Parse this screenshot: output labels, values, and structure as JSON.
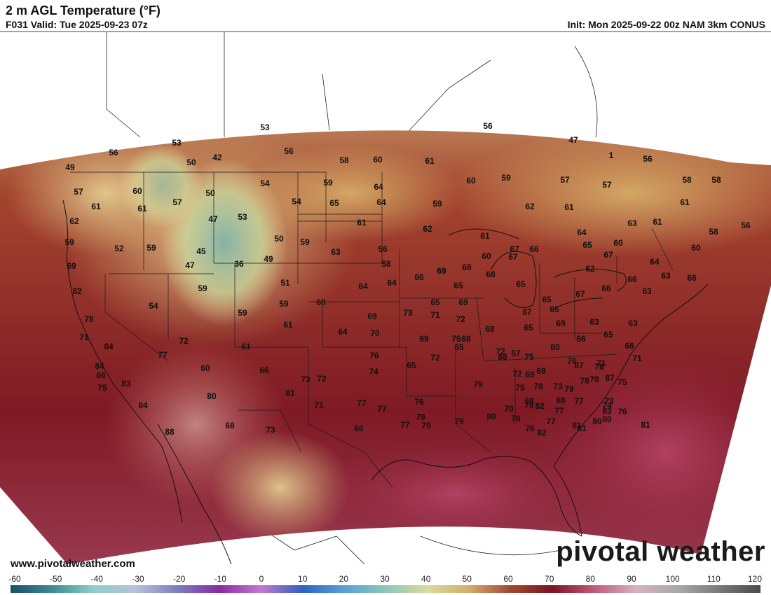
{
  "header": {
    "title": "2 m AGL Temperature (°F)",
    "valid": "F031 Valid: Tue 2025-09-23 07z",
    "init": "Init: Mon 2025-09-22 00z NAM 3km CONUS"
  },
  "footer": {
    "website": "www.pivotalweather.com",
    "brand": "pivotal weather"
  },
  "colorbar": {
    "ticks": [
      "-60",
      "-50",
      "-40",
      "-30",
      "-20",
      "-10",
      "0",
      "10",
      "20",
      "30",
      "40",
      "50",
      "60",
      "70",
      "80",
      "90",
      "100",
      "110",
      "120"
    ],
    "stops": [
      "#1d4f6a",
      "#3f8a92",
      "#8fcfc9",
      "#b8c2d8",
      "#7a7fc0",
      "#8a2aa4",
      "#c27ad0",
      "#2f62c0",
      "#5aa0d4",
      "#8bc7b8",
      "#d8dd9e",
      "#d4ac70",
      "#a0492f",
      "#7a1522",
      "#c05a7a",
      "#d8b0c0",
      "#a9a9a9",
      "#7a7a7a",
      "#4a4a4a"
    ]
  },
  "map_labels": [
    {
      "text": "53"
    },
    {
      "text": "56"
    },
    {
      "text": "47"
    },
    {
      "text": "56"
    },
    {
      "text": "53"
    },
    {
      "text": "56"
    },
    {
      "text": "50"
    },
    {
      "text": "42"
    },
    {
      "text": "58"
    },
    {
      "text": "60"
    },
    {
      "text": "61"
    },
    {
      "text": "1"
    },
    {
      "text": "56"
    },
    {
      "text": "49"
    },
    {
      "text": "57"
    },
    {
      "text": "60"
    },
    {
      "text": "57"
    },
    {
      "text": "50"
    },
    {
      "text": "54"
    },
    {
      "text": "59"
    },
    {
      "text": "64"
    },
    {
      "text": "60"
    },
    {
      "text": "59"
    },
    {
      "text": "57"
    },
    {
      "text": "57"
    },
    {
      "text": "58"
    },
    {
      "text": "58"
    },
    {
      "text": "61"
    },
    {
      "text": "61"
    },
    {
      "text": "54"
    },
    {
      "text": "65"
    },
    {
      "text": "64"
    },
    {
      "text": "59"
    },
    {
      "text": "62"
    },
    {
      "text": "61"
    },
    {
      "text": "62"
    },
    {
      "text": "47"
    },
    {
      "text": "53"
    },
    {
      "text": "61"
    },
    {
      "text": "61"
    },
    {
      "text": "63"
    },
    {
      "text": "58"
    },
    {
      "text": "56"
    },
    {
      "text": "59"
    },
    {
      "text": "52"
    },
    {
      "text": "59"
    },
    {
      "text": "45"
    },
    {
      "text": "50"
    },
    {
      "text": "59"
    },
    {
      "text": "62"
    },
    {
      "text": "61"
    },
    {
      "text": "61"
    },
    {
      "text": "64"
    },
    {
      "text": "60"
    },
    {
      "text": "69"
    },
    {
      "text": "47"
    },
    {
      "text": "36"
    },
    {
      "text": "49"
    },
    {
      "text": "63"
    },
    {
      "text": "56"
    },
    {
      "text": "66"
    },
    {
      "text": "67"
    },
    {
      "text": "65"
    },
    {
      "text": "67"
    },
    {
      "text": "64"
    },
    {
      "text": "60"
    },
    {
      "text": "58"
    },
    {
      "text": "68"
    },
    {
      "text": "60"
    },
    {
      "text": "67"
    },
    {
      "text": "62"
    },
    {
      "text": "63"
    },
    {
      "text": "82"
    },
    {
      "text": "59"
    },
    {
      "text": "51"
    },
    {
      "text": "64"
    },
    {
      "text": "64"
    },
    {
      "text": "66"
    },
    {
      "text": "69"
    },
    {
      "text": "65"
    },
    {
      "text": "68"
    },
    {
      "text": "65"
    },
    {
      "text": "67"
    },
    {
      "text": "66"
    },
    {
      "text": "66"
    },
    {
      "text": "63"
    },
    {
      "text": "54"
    },
    {
      "text": "60"
    },
    {
      "text": "59"
    },
    {
      "text": "65"
    },
    {
      "text": "69"
    },
    {
      "text": "65"
    },
    {
      "text": "66"
    },
    {
      "text": "78"
    },
    {
      "text": "59"
    },
    {
      "text": "61"
    },
    {
      "text": "69"
    },
    {
      "text": "73"
    },
    {
      "text": "71"
    },
    {
      "text": "72"
    },
    {
      "text": "67"
    },
    {
      "text": "69"
    },
    {
      "text": "63"
    },
    {
      "text": "63"
    },
    {
      "text": "71"
    },
    {
      "text": "64"
    },
    {
      "text": "70"
    },
    {
      "text": "68"
    },
    {
      "text": "65"
    },
    {
      "text": "65"
    },
    {
      "text": "84"
    },
    {
      "text": "72"
    },
    {
      "text": "61"
    },
    {
      "text": "69"
    },
    {
      "text": "68"
    },
    {
      "text": "66"
    },
    {
      "text": "65"
    },
    {
      "text": "66"
    },
    {
      "text": "84"
    },
    {
      "text": "77"
    },
    {
      "text": "60"
    },
    {
      "text": "66"
    },
    {
      "text": "73"
    },
    {
      "text": "72"
    },
    {
      "text": "65"
    },
    {
      "text": "72"
    },
    {
      "text": "65"
    },
    {
      "text": "57"
    },
    {
      "text": "72"
    },
    {
      "text": "78"
    },
    {
      "text": "71"
    },
    {
      "text": "76"
    },
    {
      "text": "80"
    },
    {
      "text": "88"
    },
    {
      "text": "87"
    },
    {
      "text": "66"
    },
    {
      "text": "75"
    },
    {
      "text": "74"
    },
    {
      "text": "76"
    },
    {
      "text": "75"
    },
    {
      "text": "72"
    },
    {
      "text": "69"
    },
    {
      "text": "69"
    },
    {
      "text": "87"
    },
    {
      "text": "75"
    },
    {
      "text": "79"
    },
    {
      "text": "78"
    },
    {
      "text": "73"
    },
    {
      "text": "78"
    },
    {
      "text": "78"
    },
    {
      "text": "75"
    },
    {
      "text": "71"
    },
    {
      "text": "83"
    },
    {
      "text": "80"
    },
    {
      "text": "81"
    },
    {
      "text": "77"
    },
    {
      "text": "76"
    },
    {
      "text": "79"
    },
    {
      "text": "75"
    },
    {
      "text": "73"
    },
    {
      "text": "84"
    },
    {
      "text": "71"
    },
    {
      "text": "77"
    },
    {
      "text": "78"
    },
    {
      "text": "77"
    },
    {
      "text": "77"
    },
    {
      "text": "74"
    },
    {
      "text": "76"
    },
    {
      "text": "68"
    },
    {
      "text": "66"
    },
    {
      "text": "77"
    },
    {
      "text": "79"
    },
    {
      "text": "79"
    },
    {
      "text": "70"
    },
    {
      "text": "76"
    },
    {
      "text": "77"
    },
    {
      "text": "88"
    },
    {
      "text": "73"
    },
    {
      "text": "79"
    },
    {
      "text": "80"
    },
    {
      "text": "76"
    },
    {
      "text": "82"
    },
    {
      "text": "80"
    },
    {
      "text": "81"
    },
    {
      "text": "88"
    },
    {
      "text": "69"
    },
    {
      "text": "81"
    },
    {
      "text": "83"
    },
    {
      "text": "82"
    },
    {
      "text": "81"
    },
    {
      "text": "80"
    },
    {
      "text": "78"
    },
    {
      "text": "86"
    },
    {
      "text": "78"
    },
    {
      "text": "76"
    },
    {
      "text": "81"
    },
    {
      "text": "74"
    },
    {
      "text": "81"
    },
    {
      "text": "81"
    },
    {
      "text": "80"
    },
    {
      "text": "82"
    },
    {
      "text": "77"
    },
    {
      "text": "86"
    },
    {
      "text": "80"
    },
    {
      "text": "76"
    },
    {
      "text": "80"
    },
    {
      "text": "81"
    }
  ]
}
